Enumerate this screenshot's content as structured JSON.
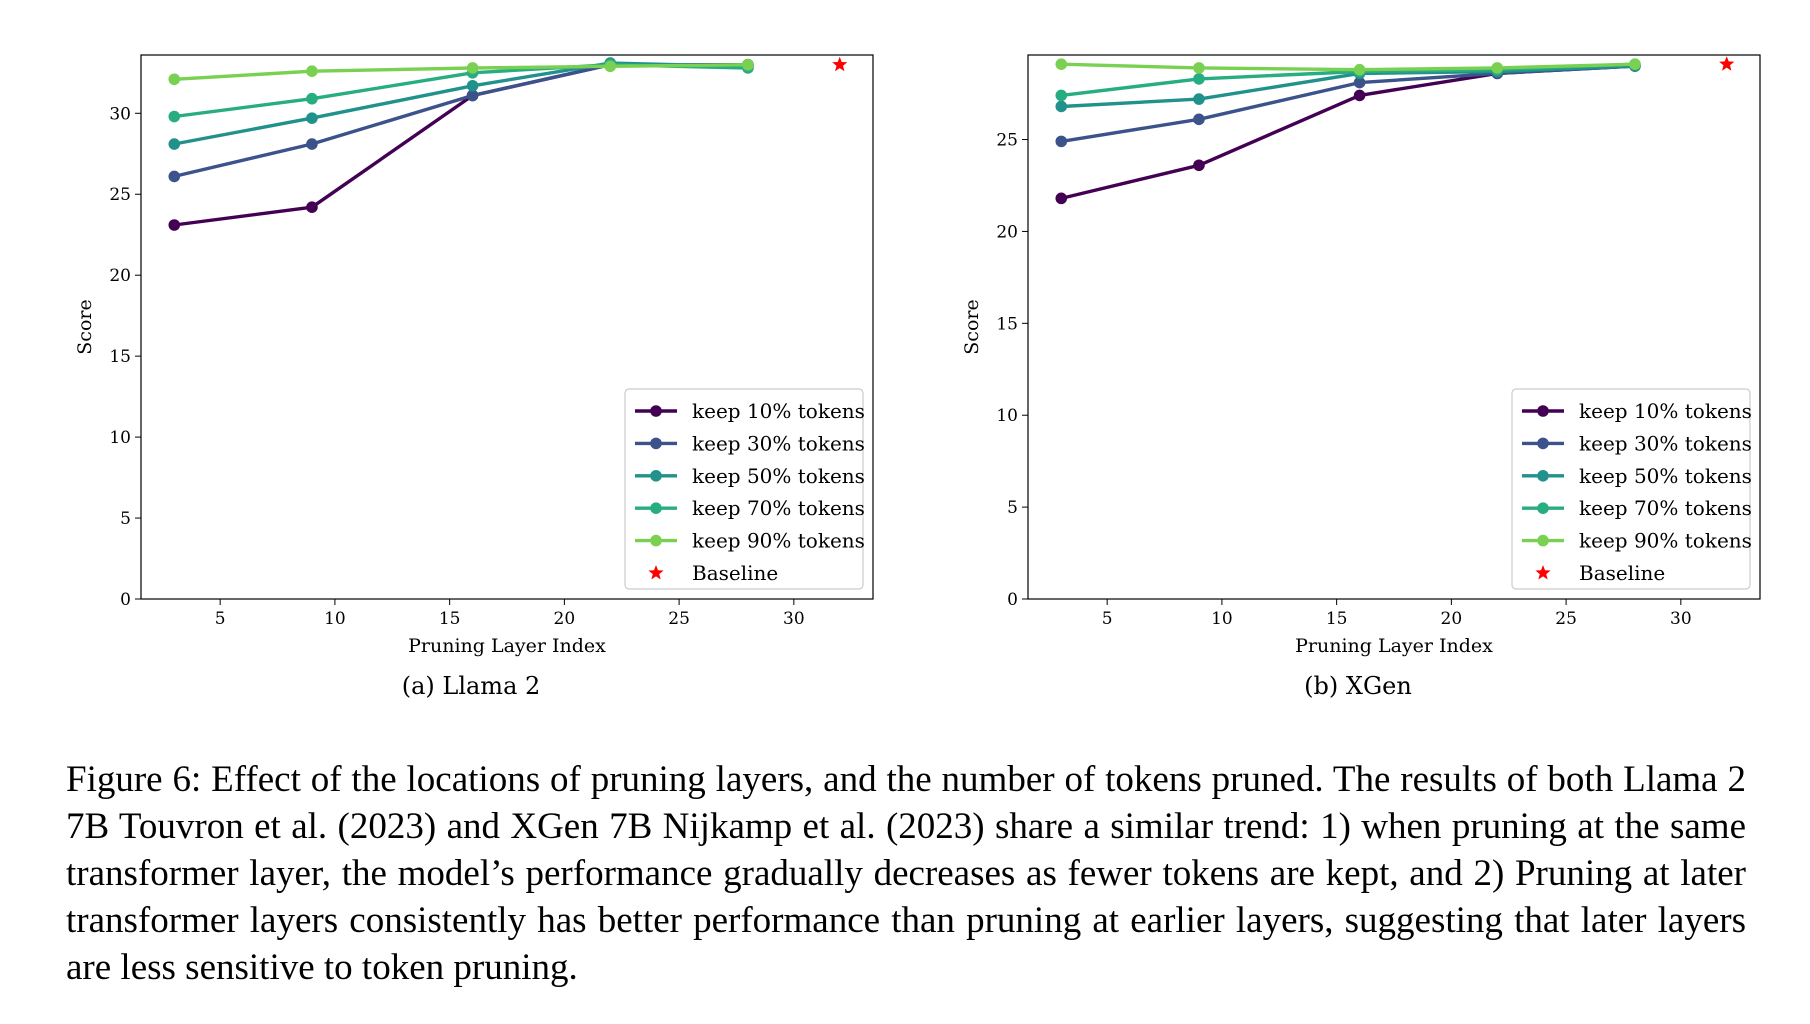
{
  "chart_data": [
    {
      "type": "line",
      "caption": "(a) Llama 2",
      "xlabel": "Pruning Layer Index",
      "ylabel": "Score",
      "xlim": [
        1.55,
        33.45
      ],
      "ylim": [
        0,
        33.6
      ],
      "xticks": [
        5,
        10,
        15,
        20,
        25,
        30
      ],
      "yticks": [
        0,
        5,
        10,
        15,
        20,
        25,
        30
      ],
      "legend_position": "lower-right",
      "x": [
        3,
        9,
        16,
        22,
        28
      ],
      "series": [
        {
          "name": "keep 10% tokens",
          "color": "#440154",
          "values": [
            23.1,
            24.2,
            31.1,
            33.0,
            33.0
          ]
        },
        {
          "name": "keep 30% tokens",
          "color": "#3b528b",
          "values": [
            26.1,
            28.1,
            31.1,
            33.0,
            33.0
          ]
        },
        {
          "name": "keep 50% tokens",
          "color": "#21918c",
          "values": [
            28.1,
            29.7,
            31.7,
            33.1,
            32.9
          ]
        },
        {
          "name": "keep 70% tokens",
          "color": "#27ad81",
          "values": [
            29.8,
            30.9,
            32.5,
            33.0,
            32.8
          ]
        },
        {
          "name": "keep 90% tokens",
          "color": "#7ad151",
          "values": [
            32.1,
            32.6,
            32.8,
            32.9,
            33.0
          ]
        }
      ],
      "baseline": {
        "name": "Baseline",
        "x": 32,
        "y": 33.0,
        "color": "#ff0000"
      }
    },
    {
      "type": "line",
      "caption": "(b) XGen",
      "xlabel": "Pruning Layer Index",
      "ylabel": "Score",
      "xlim": [
        1.55,
        33.45
      ],
      "ylim": [
        0,
        29.6
      ],
      "xticks": [
        5,
        10,
        15,
        20,
        25,
        30
      ],
      "yticks": [
        0,
        5,
        10,
        15,
        20,
        25
      ],
      "legend_position": "lower-right",
      "x": [
        3,
        9,
        16,
        22,
        28
      ],
      "series": [
        {
          "name": "keep 10% tokens",
          "color": "#440154",
          "values": [
            21.8,
            23.6,
            27.4,
            28.6,
            29.0
          ]
        },
        {
          "name": "keep 30% tokens",
          "color": "#3b528b",
          "values": [
            24.9,
            26.1,
            28.1,
            28.6,
            29.0
          ]
        },
        {
          "name": "keep 50% tokens",
          "color": "#21918c",
          "values": [
            26.8,
            27.2,
            28.6,
            28.7,
            29.0
          ]
        },
        {
          "name": "keep 70% tokens",
          "color": "#27ad81",
          "values": [
            27.4,
            28.3,
            28.7,
            28.8,
            29.1
          ]
        },
        {
          "name": "keep 90% tokens",
          "color": "#7ad151",
          "values": [
            29.1,
            28.9,
            28.8,
            28.9,
            29.1
          ]
        }
      ],
      "baseline": {
        "name": "Baseline",
        "x": 32,
        "y": 29.1,
        "color": "#ff0000"
      }
    }
  ],
  "figure_caption": "Figure 6: Effect of the locations of pruning layers, and the number of tokens pruned. The results of both Llama 2 7B Touvron et al. (2023) and XGen 7B Nijkamp et al. (2023) share a similar trend: 1) when pruning at the same transformer layer, the model’s performance gradually decreases as fewer tokens are kept, and 2) Pruning at later transformer layers consistently has better performance than pruning at earlier layers, suggesting that later layers are less sensitive to token pruning."
}
